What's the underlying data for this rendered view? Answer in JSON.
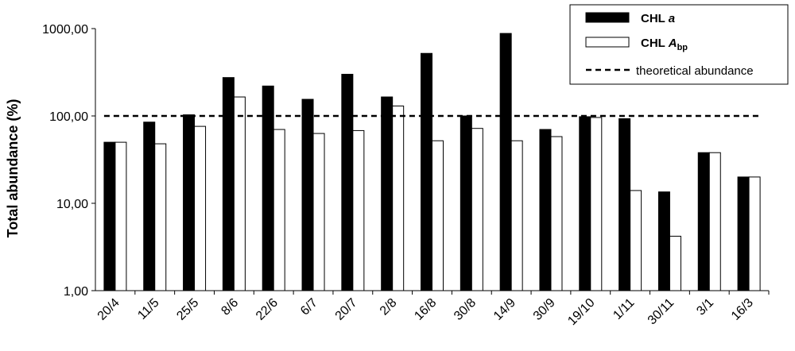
{
  "chart_data": {
    "type": "bar",
    "ylabel": "Total abundance (%)",
    "y_scale": "log",
    "ylim": [
      1,
      1000
    ],
    "y_ticks": [
      {
        "value": 1,
        "label": "1,00"
      },
      {
        "value": 10,
        "label": "10,00"
      },
      {
        "value": 100,
        "label": "100,00"
      },
      {
        "value": 1000,
        "label": "1000,00"
      }
    ],
    "categories": [
      "20/4",
      "11/5",
      "25/5",
      "8/6",
      "22/6",
      "6/7",
      "20/7",
      "2/8",
      "16/8",
      "30/8",
      "14/9",
      "30/9",
      "19/10",
      "1/11",
      "30/11",
      "3/1",
      "16/3"
    ],
    "series": [
      {
        "name": "CHL a",
        "name_main": "CHL ",
        "name_italic": "a",
        "name_sub": "",
        "fill": "#000000",
        "values": [
          50,
          85,
          103,
          275,
          220,
          155,
          300,
          165,
          520,
          100,
          880,
          70,
          98,
          93,
          13.5,
          38,
          20
        ]
      },
      {
        "name": "CHL Abp",
        "name_main": "CHL ",
        "name_italic": "A",
        "name_sub": "bp",
        "fill": "#ffffff",
        "values": [
          50,
          48,
          76,
          165,
          70,
          63,
          68,
          130,
          52,
          72,
          52,
          58,
          96,
          14,
          4.2,
          38,
          20
        ]
      }
    ],
    "reference_line": {
      "name": "theoretical abundance",
      "value": 100,
      "style": "dashed"
    },
    "grid": false,
    "legend_position": "top-right"
  }
}
